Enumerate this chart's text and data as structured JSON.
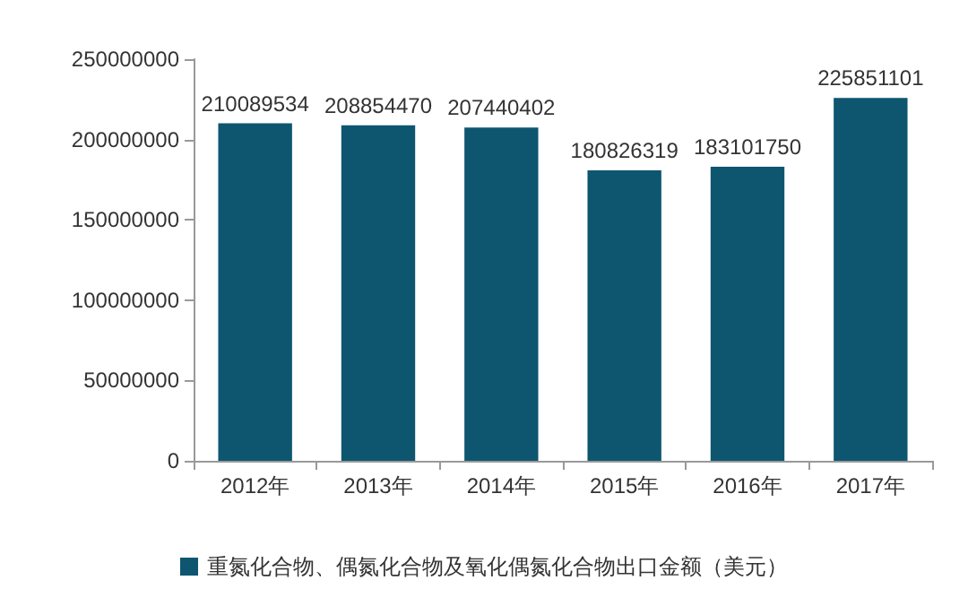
{
  "chart_data": {
    "type": "bar",
    "categories": [
      "2012年",
      "2013年",
      "2014年",
      "2015年",
      "2016年",
      "2017年"
    ],
    "series": [
      {
        "name": "重氮化合物、偶氮化合物及氧化偶氮化合物出口金额（美元）",
        "color": "#0e5670",
        "values": [
          210089534,
          208854470,
          207440402,
          180826319,
          183101750,
          225851101
        ]
      }
    ],
    "ylim": [
      0,
      250000000
    ],
    "yticks": [
      0,
      50000000,
      100000000,
      150000000,
      200000000,
      250000000
    ],
    "grid": false,
    "legend": "bottom",
    "data_labels": true
  }
}
